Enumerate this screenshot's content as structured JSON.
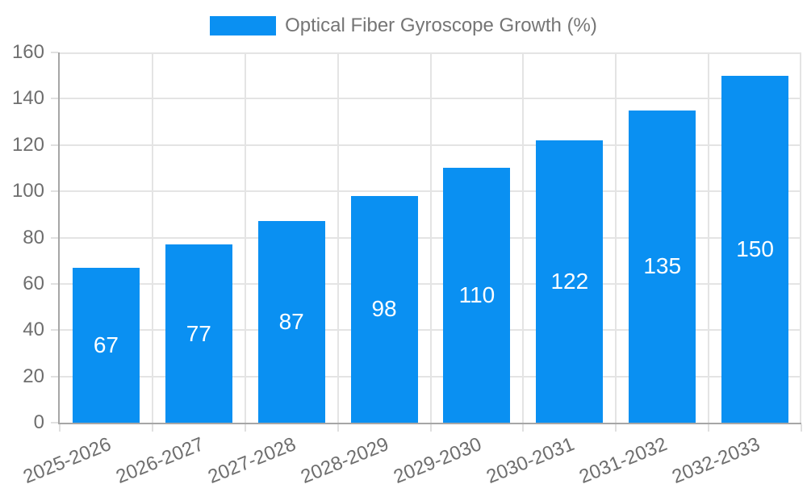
{
  "legend": {
    "label": "Optical Fiber Gyroscope Growth (%)"
  },
  "chart_data": {
    "type": "bar",
    "title": "Optical Fiber Gyroscope Growth (%)",
    "categories": [
      "2025-2026",
      "2026-2027",
      "2027-2028",
      "2028-2029",
      "2029-2030",
      "2030-2031",
      "2031-2032",
      "2032-2033"
    ],
    "values": [
      67,
      77,
      87,
      98,
      110,
      122,
      135,
      150
    ],
    "value_labels_shown": true,
    "xlabel": "",
    "ylabel": "",
    "ylim": [
      0,
      160
    ],
    "yticks": [
      0,
      20,
      40,
      60,
      80,
      100,
      120,
      140,
      160
    ],
    "grid": true,
    "legend_position": "top",
    "x_label_rotation_deg": -22,
    "colors": {
      "bar": "#0a90f2",
      "value_label": "#ffffff",
      "grid": "#e4e4e4",
      "axis": "#a6a6a6",
      "tick_mark": "#e0e0e0",
      "tick_text": "#6e6e6e",
      "legend_text": "#757575",
      "background": "#ffffff"
    }
  }
}
